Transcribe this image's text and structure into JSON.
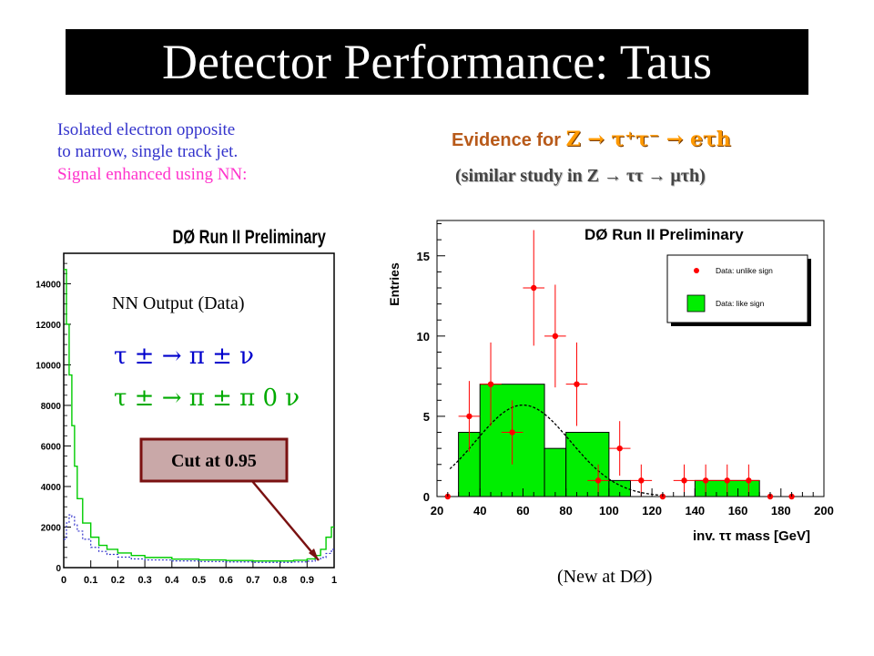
{
  "slide_title": "Detector Performance: Taus",
  "left_note": {
    "line1": "Isolated electron opposite",
    "line2": "to narrow, single track jet.",
    "line3": "Signal enhanced using NN:"
  },
  "evidence": {
    "prefix": "Evidence for",
    "formula": "Z → τ⁺τ⁻ → eτh",
    "similar": "(similar study in Z → ττ → μτh)"
  },
  "caption": "(New at DØ)",
  "colors": {
    "signal_fill": "#00ee00",
    "data_points": "#ff0000",
    "title_bg": "#000000",
    "title_text": "#ffffff",
    "nn_line": "#00cc00",
    "nn_dotted": "#3333cc"
  },
  "chart_data": [
    {
      "type": "line",
      "title": "DØ Run II Preliminary",
      "inner_title": "NN Output (Data)",
      "decays": [
        "τ ± → π ± ν",
        "τ ± → π ± π 0 ν"
      ],
      "cut_label": "Cut at 0.95",
      "xlim": [
        0,
        1
      ],
      "ylim": [
        0,
        15500
      ],
      "x_ticks": [
        "0",
        "0.1",
        "0.2",
        "0.3",
        "0.4",
        "0.5",
        "0.6",
        "0.7",
        "0.8",
        "0.9",
        "1"
      ],
      "y_ticks": [
        "0",
        "2000",
        "4000",
        "6000",
        "8000",
        "10000",
        "12000",
        "14000"
      ],
      "y_tick_values": [
        0,
        2000,
        4000,
        6000,
        8000,
        10000,
        12000,
        14000
      ],
      "x": [
        0.0,
        0.01,
        0.02,
        0.03,
        0.04,
        0.05,
        0.07,
        0.1,
        0.13,
        0.16,
        0.2,
        0.25,
        0.3,
        0.4,
        0.5,
        0.6,
        0.7,
        0.8,
        0.85,
        0.9,
        0.93,
        0.95,
        0.97,
        0.99
      ],
      "series": [
        {
          "style": "solid",
          "values": [
            14700,
            12000,
            9500,
            7000,
            5000,
            3400,
            2200,
            1500,
            1100,
            900,
            720,
            600,
            500,
            420,
            380,
            350,
            330,
            330,
            360,
            430,
            600,
            900,
            1500,
            2000
          ]
        },
        {
          "style": "dotted",
          "values": [
            1400,
            2200,
            2600,
            2500,
            2100,
            1800,
            1400,
            1000,
            800,
            650,
            520,
            430,
            380,
            330,
            300,
            280,
            260,
            260,
            280,
            320,
            380,
            500,
            700,
            900
          ]
        }
      ]
    },
    {
      "type": "bar",
      "title": "DØ Run II Preliminary",
      "xlabel": "inv. ττ mass [GeV]",
      "ylabel": "Entries",
      "xlim": [
        20,
        200
      ],
      "ylim": [
        0,
        17.2
      ],
      "x_ticks": [
        "20",
        "40",
        "60",
        "80",
        "100",
        "120",
        "140",
        "160",
        "180",
        "200"
      ],
      "x_tick_values": [
        20,
        40,
        60,
        80,
        100,
        120,
        140,
        160,
        180,
        200
      ],
      "y_ticks": [
        "0",
        "5",
        "10",
        "15"
      ],
      "y_tick_values": [
        0,
        5,
        10,
        15
      ],
      "legend": [
        "Data: unlike sign",
        "Data: like sign"
      ],
      "legend_position": "top-right",
      "like_sign_bins": [
        {
          "x0": 30,
          "x1": 40,
          "value": 4
        },
        {
          "x0": 40,
          "x1": 70,
          "value": 7
        },
        {
          "x0": 70,
          "x1": 80,
          "value": 3
        },
        {
          "x0": 80,
          "x1": 100,
          "value": 4
        },
        {
          "x0": 100,
          "x1": 110,
          "value": 1
        },
        {
          "x0": 140,
          "x1": 170,
          "value": 1
        }
      ],
      "unlike_sign_points": [
        {
          "x": 25,
          "y": 0,
          "err": 0
        },
        {
          "x": 35,
          "y": 5,
          "err": 2.2
        },
        {
          "x": 45,
          "y": 7,
          "err": 2.6
        },
        {
          "x": 55,
          "y": 4,
          "err": 2.0
        },
        {
          "x": 65,
          "y": 13,
          "err": 3.6
        },
        {
          "x": 75,
          "y": 10,
          "err": 3.2
        },
        {
          "x": 85,
          "y": 7,
          "err": 2.6
        },
        {
          "x": 95,
          "y": 1,
          "err": 1.0
        },
        {
          "x": 105,
          "y": 3,
          "err": 1.7
        },
        {
          "x": 115,
          "y": 1,
          "err": 1.0
        },
        {
          "x": 125,
          "y": 0,
          "err": 0
        },
        {
          "x": 135,
          "y": 1,
          "err": 1.0
        },
        {
          "x": 145,
          "y": 1,
          "err": 1.0
        },
        {
          "x": 155,
          "y": 1,
          "err": 1.0
        },
        {
          "x": 165,
          "y": 1,
          "err": 1.0
        },
        {
          "x": 175,
          "y": 0,
          "err": 0
        },
        {
          "x": 185,
          "y": 0,
          "err": 0
        }
      ],
      "fit_curve": {
        "style": "dashed",
        "shape": "gaussian",
        "peak_x": 60,
        "peak_y": 5.7,
        "sigma": 22,
        "x_range": [
          26,
          125
        ]
      }
    }
  ]
}
